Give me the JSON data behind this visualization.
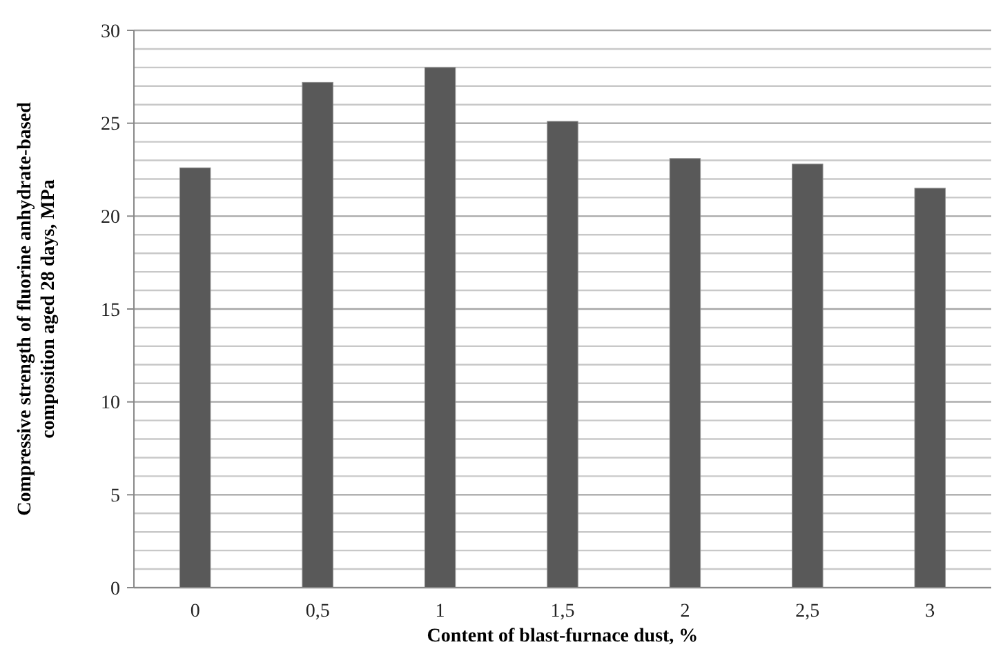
{
  "chart_data": {
    "type": "bar",
    "xlabel": "Content of blast-furnace dust, %",
    "ylabel": "Compressive strength of fluorine anhydrate-based composition aged 28 days, MPa",
    "categories": [
      "0",
      "0,5",
      "1",
      "1,5",
      "2",
      "2,5",
      "3"
    ],
    "values": [
      22.6,
      27.2,
      28,
      25.1,
      23.1,
      22.8,
      21.5
    ],
    "color": "#595959",
    "ylim": [
      0,
      30
    ],
    "yticks": [
      0,
      {
        "value": 1,
        "label": null
      },
      {
        "value": 2,
        "label": null
      },
      {
        "value": 3,
        "label": null
      },
      {
        "value": 4,
        "label": null
      },
      5,
      {
        "value": 6,
        "label": null
      },
      {
        "value": 7,
        "label": null
      },
      {
        "value": 8,
        "label": null
      },
      {
        "value": 9,
        "label": null
      },
      10,
      {
        "value": 11,
        "label": null
      },
      {
        "value": 12,
        "label": null
      },
      {
        "value": 13,
        "label": null
      },
      {
        "value": 14,
        "label": null
      },
      15,
      {
        "value": 16,
        "label": null
      },
      {
        "value": 17,
        "label": null
      },
      {
        "value": 18,
        "label": null
      },
      {
        "value": 19,
        "label": null
      },
      20,
      {
        "value": 21,
        "label": null
      },
      {
        "value": 22,
        "label": null
      },
      {
        "value": 23,
        "label": null
      },
      {
        "value": 24,
        "label": null
      },
      25,
      {
        "value": 26,
        "label": null
      },
      {
        "value": 27,
        "label": null
      },
      {
        "value": 28,
        "label": null
      },
      {
        "value": 29,
        "label": null
      },
      30
    ],
    "grid": "y"
  }
}
